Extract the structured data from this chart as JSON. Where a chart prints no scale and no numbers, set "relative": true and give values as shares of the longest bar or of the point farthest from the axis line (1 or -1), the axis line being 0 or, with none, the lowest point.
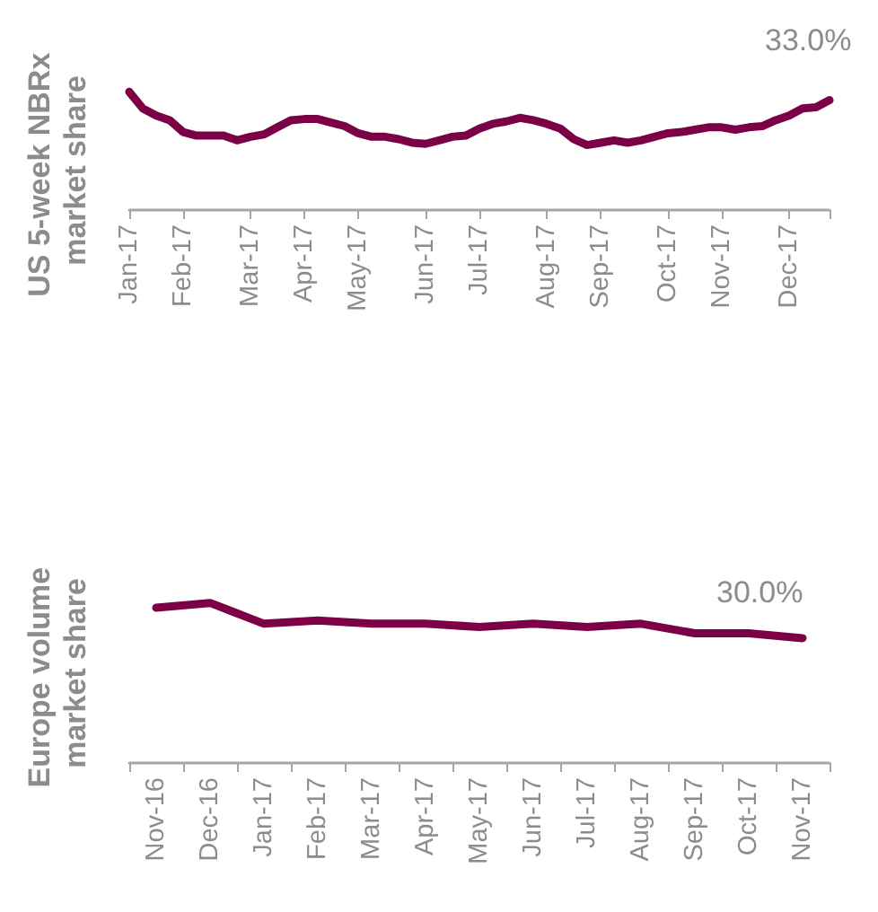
{
  "chart_data": [
    {
      "type": "line",
      "ylabel": "US 5-week NBRx market share",
      "relative": true,
      "tick_labels": "x",
      "marker": "none",
      "categories": [
        "Jan-17",
        null,
        null,
        null,
        "Feb-17",
        null,
        null,
        null,
        null,
        "Mar-17",
        null,
        null,
        null,
        "Apr-17",
        null,
        null,
        null,
        "May-17",
        null,
        null,
        null,
        null,
        "Jun-17",
        null,
        null,
        null,
        "Jul-17",
        null,
        null,
        null,
        null,
        "Aug-17",
        null,
        null,
        null,
        "Sep-17",
        null,
        null,
        null,
        null,
        "Oct-17",
        null,
        null,
        null,
        "Nov-17",
        null,
        null,
        null,
        null,
        "Dec-17",
        null,
        null,
        null
      ],
      "annotations": [
        "33.0%"
      ],
      "series": [
        {
          "color": "#7b0046",
          "values": [
            1.0,
            0.86,
            0.8,
            0.76,
            0.66,
            0.63,
            0.63,
            0.63,
            0.59,
            0.62,
            0.64,
            0.7,
            0.76,
            0.77,
            0.77,
            0.74,
            0.71,
            0.65,
            0.62,
            0.62,
            0.6,
            0.57,
            0.56,
            0.59,
            0.62,
            0.63,
            0.69,
            0.73,
            0.75,
            0.78,
            0.76,
            0.73,
            0.69,
            0.6,
            0.55,
            0.57,
            0.59,
            0.57,
            0.59,
            0.62,
            0.65,
            0.66,
            0.68,
            0.7,
            0.7,
            0.68,
            0.7,
            0.71,
            0.76,
            0.8,
            0.86,
            0.87,
            0.93
          ]
        }
      ]
    },
    {
      "type": "line",
      "ylabel": "Europe volume market share",
      "relative": true,
      "tick_labels": "x",
      "marker": "none",
      "categories": [
        "Nov-16",
        "Dec-16",
        "Jan-17",
        "Feb-17",
        "Mar-17",
        "Apr-17",
        "May-17",
        "Jun-17",
        "Jul-17",
        "Aug-17",
        "Sep-17",
        "Oct-17",
        "Nov-17"
      ],
      "annotations": [
        "30.0%"
      ],
      "series": [
        {
          "color": "#7b0046",
          "values": [
            0.97,
            1.0,
            0.87,
            0.89,
            0.87,
            0.87,
            0.85,
            0.87,
            0.85,
            0.87,
            0.81,
            0.81,
            0.78
          ]
        }
      ]
    }
  ]
}
